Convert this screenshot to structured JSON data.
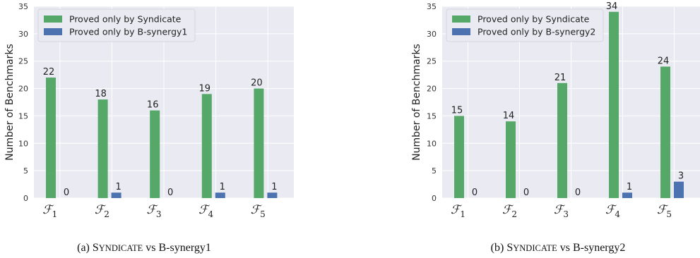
{
  "colors": {
    "syndicate": "#55a868",
    "bsynergy": "#4c72b0",
    "plot_bg": "#eaeaf2",
    "grid": "#ffffff"
  },
  "chart_data": [
    {
      "type": "bar",
      "categories": [
        "F1",
        "F2",
        "F3",
        "F4",
        "F5"
      ],
      "category_labels": [
        {
          "main": "ℱ",
          "sub": "1"
        },
        {
          "main": "ℱ",
          "sub": "2"
        },
        {
          "main": "ℱ",
          "sub": "3"
        },
        {
          "main": "ℱ",
          "sub": "4"
        },
        {
          "main": "ℱ",
          "sub": "5"
        }
      ],
      "series": [
        {
          "name": "Proved only by Syndicate",
          "values": [
            22,
            18,
            16,
            19,
            20
          ]
        },
        {
          "name": "Proved only by B-synergy1",
          "values": [
            0,
            1,
            0,
            1,
            1
          ]
        }
      ],
      "ylabel": "Number of Benchmarks",
      "ylim": [
        0,
        35
      ],
      "yticks": [
        0,
        5,
        10,
        15,
        20,
        25,
        30,
        35
      ],
      "grid": true,
      "legend": "top-left",
      "caption": {
        "prefix": "(a) ",
        "smallcaps": "Syndicate",
        "suffix": " vs B-synergy1"
      }
    },
    {
      "type": "bar",
      "categories": [
        "F1",
        "F2",
        "F3",
        "F4",
        "F5"
      ],
      "category_labels": [
        {
          "main": "ℱ",
          "sub": "1"
        },
        {
          "main": "ℱ",
          "sub": "2"
        },
        {
          "main": "ℱ",
          "sub": "3"
        },
        {
          "main": "ℱ",
          "sub": "4"
        },
        {
          "main": "ℱ",
          "sub": "5"
        }
      ],
      "series": [
        {
          "name": "Proved only by Syndicate",
          "values": [
            15,
            14,
            21,
            34,
            24
          ]
        },
        {
          "name": "Proved only by B-synergy2",
          "values": [
            0,
            0,
            0,
            1,
            3
          ]
        }
      ],
      "ylabel": "Number of Benchmarks",
      "ylim": [
        0,
        35
      ],
      "yticks": [
        0,
        5,
        10,
        15,
        20,
        25,
        30,
        35
      ],
      "grid": true,
      "legend": "top-left",
      "caption": {
        "prefix": "(b) ",
        "smallcaps": "Syndicate",
        "suffix": " vs B-synergy2"
      }
    }
  ]
}
